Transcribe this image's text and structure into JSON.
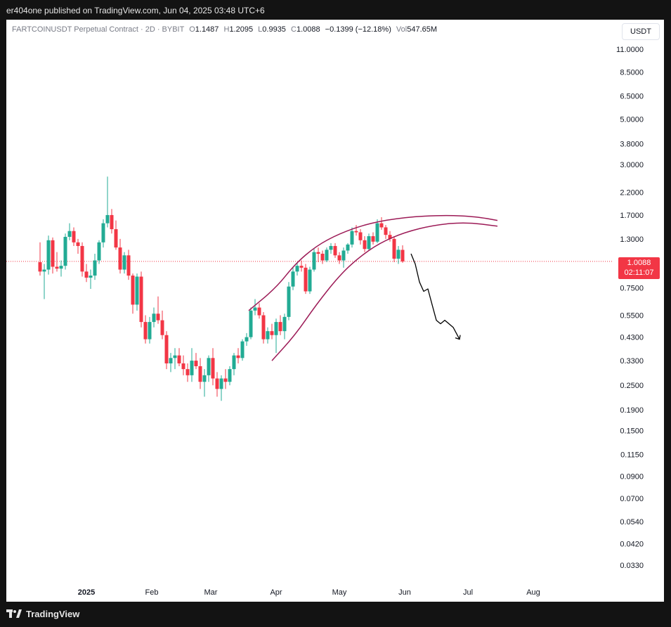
{
  "header": {
    "published_text": "er404one published on TradingView.com, Jun 04, 2025 03:48 UTC+6"
  },
  "legend": {
    "symbol": "FARTCOINUSDT Perpetual Contract · 2D · BYBIT",
    "open_label": "O",
    "open": "1.1487",
    "high_label": "H",
    "high": "1.2095",
    "low_label": "L",
    "low": "0.9935",
    "close_label": "C",
    "close": "1.0088",
    "change": "−0.1399 (−12.18%)",
    "vol_label": "Vol",
    "vol": "547.65",
    "vol_unit": "M"
  },
  "currency": "USDT",
  "last_price": {
    "price": "1.0088",
    "countdown": "02:11:07"
  },
  "colors": {
    "up": "#22ab94",
    "down": "#f23645",
    "channel": "#9c1a56",
    "projection": "#000000"
  },
  "footer": {
    "brand": "TradingView",
    "logo_icon": "tradingview-logo-icon"
  },
  "chart_data": {
    "type": "candlestick",
    "title": "FARTCOINUSDT Perpetual Contract · 2D · BYBIT",
    "y_scale": "log",
    "y_ticks": [
      "11.0000",
      "8.5000",
      "6.5000",
      "5.0000",
      "3.8000",
      "3.0000",
      "2.2000",
      "1.7000",
      "1.3000",
      "0.7500",
      "0.5500",
      "0.4300",
      "0.3300",
      "0.2500",
      "0.1900",
      "0.1500",
      "0.1150",
      "0.0900",
      "0.0700",
      "0.0540",
      "0.0420",
      "0.0330"
    ],
    "x_ticks": [
      "2025",
      "Feb",
      "Mar",
      "Apr",
      "May",
      "Jun",
      "Jul",
      "Aug"
    ],
    "x_range": [
      "2024-12-10",
      "2025-08-31"
    ],
    "candles": [
      {
        "date": "2024-12-10",
        "o": 1.0,
        "h": 1.25,
        "l": 0.86,
        "c": 0.9
      },
      {
        "date": "2024-12-12",
        "o": 0.9,
        "h": 0.98,
        "l": 0.66,
        "c": 0.92
      },
      {
        "date": "2024-12-14",
        "o": 0.92,
        "h": 1.35,
        "l": 0.87,
        "c": 1.28
      },
      {
        "date": "2024-12-16",
        "o": 1.28,
        "h": 1.32,
        "l": 0.88,
        "c": 0.95
      },
      {
        "date": "2024-12-18",
        "o": 0.95,
        "h": 1.12,
        "l": 0.9,
        "c": 0.93
      },
      {
        "date": "2024-12-20",
        "o": 0.93,
        "h": 1.02,
        "l": 0.85,
        "c": 0.96
      },
      {
        "date": "2024-12-22",
        "o": 0.96,
        "h": 1.38,
        "l": 0.92,
        "c": 1.33
      },
      {
        "date": "2024-12-24",
        "o": 1.33,
        "h": 1.55,
        "l": 1.28,
        "c": 1.42
      },
      {
        "date": "2024-12-26",
        "o": 1.42,
        "h": 1.48,
        "l": 1.2,
        "c": 1.25
      },
      {
        "date": "2024-12-28",
        "o": 1.25,
        "h": 1.3,
        "l": 1.1,
        "c": 1.2
      },
      {
        "date": "2024-12-30",
        "o": 1.2,
        "h": 1.25,
        "l": 0.85,
        "c": 0.9
      },
      {
        "date": "2025-01-01",
        "o": 0.9,
        "h": 0.98,
        "l": 0.8,
        "c": 0.84
      },
      {
        "date": "2025-01-03",
        "o": 0.84,
        "h": 0.92,
        "l": 0.74,
        "c": 0.86
      },
      {
        "date": "2025-01-05",
        "o": 0.86,
        "h": 1.1,
        "l": 0.82,
        "c": 1.02
      },
      {
        "date": "2025-01-07",
        "o": 1.02,
        "h": 1.28,
        "l": 0.98,
        "c": 1.25
      },
      {
        "date": "2025-01-09",
        "o": 1.25,
        "h": 1.62,
        "l": 1.18,
        "c": 1.55
      },
      {
        "date": "2025-01-11",
        "o": 1.55,
        "h": 2.62,
        "l": 1.48,
        "c": 1.7
      },
      {
        "date": "2025-01-13",
        "o": 1.7,
        "h": 1.82,
        "l": 1.38,
        "c": 1.45
      },
      {
        "date": "2025-01-15",
        "o": 1.45,
        "h": 1.6,
        "l": 1.15,
        "c": 1.18
      },
      {
        "date": "2025-01-17",
        "o": 1.18,
        "h": 1.3,
        "l": 0.88,
        "c": 0.92
      },
      {
        "date": "2025-01-19",
        "o": 0.92,
        "h": 1.12,
        "l": 0.88,
        "c": 1.08
      },
      {
        "date": "2025-01-21",
        "o": 1.08,
        "h": 1.15,
        "l": 0.82,
        "c": 0.86
      },
      {
        "date": "2025-01-23",
        "o": 0.86,
        "h": 0.88,
        "l": 0.56,
        "c": 0.62
      },
      {
        "date": "2025-01-25",
        "o": 0.62,
        "h": 0.88,
        "l": 0.58,
        "c": 0.85
      },
      {
        "date": "2025-01-27",
        "o": 0.85,
        "h": 0.9,
        "l": 0.48,
        "c": 0.51
      },
      {
        "date": "2025-01-29",
        "o": 0.51,
        "h": 0.55,
        "l": 0.4,
        "c": 0.42
      },
      {
        "date": "2025-01-31",
        "o": 0.42,
        "h": 0.54,
        "l": 0.4,
        "c": 0.51
      },
      {
        "date": "2025-02-02",
        "o": 0.51,
        "h": 0.6,
        "l": 0.48,
        "c": 0.56
      },
      {
        "date": "2025-02-04",
        "o": 0.56,
        "h": 0.68,
        "l": 0.5,
        "c": 0.52
      },
      {
        "date": "2025-02-06",
        "o": 0.52,
        "h": 0.58,
        "l": 0.42,
        "c": 0.44
      },
      {
        "date": "2025-02-08",
        "o": 0.44,
        "h": 0.46,
        "l": 0.3,
        "c": 0.32
      },
      {
        "date": "2025-02-10",
        "o": 0.32,
        "h": 0.36,
        "l": 0.29,
        "c": 0.34
      },
      {
        "date": "2025-02-12",
        "o": 0.34,
        "h": 0.38,
        "l": 0.3,
        "c": 0.35
      },
      {
        "date": "2025-02-14",
        "o": 0.35,
        "h": 0.38,
        "l": 0.31,
        "c": 0.32
      },
      {
        "date": "2025-02-16",
        "o": 0.32,
        "h": 0.35,
        "l": 0.28,
        "c": 0.3
      },
      {
        "date": "2025-02-18",
        "o": 0.3,
        "h": 0.32,
        "l": 0.26,
        "c": 0.28
      },
      {
        "date": "2025-02-20",
        "o": 0.28,
        "h": 0.38,
        "l": 0.26,
        "c": 0.33
      },
      {
        "date": "2025-02-22",
        "o": 0.33,
        "h": 0.36,
        "l": 0.3,
        "c": 0.31
      },
      {
        "date": "2025-02-24",
        "o": 0.31,
        "h": 0.34,
        "l": 0.24,
        "c": 0.26
      },
      {
        "date": "2025-02-26",
        "o": 0.26,
        "h": 0.3,
        "l": 0.22,
        "c": 0.28
      },
      {
        "date": "2025-02-28",
        "o": 0.28,
        "h": 0.35,
        "l": 0.26,
        "c": 0.34
      },
      {
        "date": "2025-03-02",
        "o": 0.34,
        "h": 0.38,
        "l": 0.25,
        "c": 0.27
      },
      {
        "date": "2025-03-04",
        "o": 0.27,
        "h": 0.29,
        "l": 0.22,
        "c": 0.24
      },
      {
        "date": "2025-03-06",
        "o": 0.24,
        "h": 0.28,
        "l": 0.21,
        "c": 0.27
      },
      {
        "date": "2025-03-08",
        "o": 0.27,
        "h": 0.3,
        "l": 0.24,
        "c": 0.26
      },
      {
        "date": "2025-03-10",
        "o": 0.26,
        "h": 0.31,
        "l": 0.25,
        "c": 0.3
      },
      {
        "date": "2025-03-12",
        "o": 0.3,
        "h": 0.36,
        "l": 0.28,
        "c": 0.35
      },
      {
        "date": "2025-03-14",
        "o": 0.35,
        "h": 0.38,
        "l": 0.32,
        "c": 0.34
      },
      {
        "date": "2025-03-16",
        "o": 0.34,
        "h": 0.42,
        "l": 0.33,
        "c": 0.41
      },
      {
        "date": "2025-03-18",
        "o": 0.41,
        "h": 0.45,
        "l": 0.39,
        "c": 0.43
      },
      {
        "date": "2025-03-20",
        "o": 0.43,
        "h": 0.6,
        "l": 0.42,
        "c": 0.58
      },
      {
        "date": "2025-03-22",
        "o": 0.58,
        "h": 0.66,
        "l": 0.55,
        "c": 0.6
      },
      {
        "date": "2025-03-24",
        "o": 0.6,
        "h": 0.63,
        "l": 0.53,
        "c": 0.55
      },
      {
        "date": "2025-03-26",
        "o": 0.55,
        "h": 0.57,
        "l": 0.4,
        "c": 0.42
      },
      {
        "date": "2025-03-28",
        "o": 0.42,
        "h": 0.48,
        "l": 0.4,
        "c": 0.46
      },
      {
        "date": "2025-03-30",
        "o": 0.46,
        "h": 0.5,
        "l": 0.42,
        "c": 0.44
      },
      {
        "date": "2025-04-01",
        "o": 0.44,
        "h": 0.53,
        "l": 0.36,
        "c": 0.51
      },
      {
        "date": "2025-04-03",
        "o": 0.51,
        "h": 0.55,
        "l": 0.44,
        "c": 0.46
      },
      {
        "date": "2025-04-05",
        "o": 0.46,
        "h": 0.56,
        "l": 0.42,
        "c": 0.54
      },
      {
        "date": "2025-04-07",
        "o": 0.54,
        "h": 0.8,
        "l": 0.52,
        "c": 0.76
      },
      {
        "date": "2025-04-09",
        "o": 0.76,
        "h": 0.95,
        "l": 0.73,
        "c": 0.9
      },
      {
        "date": "2025-04-11",
        "o": 0.9,
        "h": 1.0,
        "l": 0.86,
        "c": 0.96
      },
      {
        "date": "2025-04-13",
        "o": 0.96,
        "h": 1.02,
        "l": 0.9,
        "c": 0.94
      },
      {
        "date": "2025-04-15",
        "o": 0.94,
        "h": 0.98,
        "l": 0.7,
        "c": 0.72
      },
      {
        "date": "2025-04-17",
        "o": 0.72,
        "h": 0.95,
        "l": 0.7,
        "c": 0.92
      },
      {
        "date": "2025-04-19",
        "o": 0.92,
        "h": 1.16,
        "l": 0.9,
        "c": 1.12
      },
      {
        "date": "2025-04-21",
        "o": 1.12,
        "h": 1.18,
        "l": 1.0,
        "c": 1.1
      },
      {
        "date": "2025-04-23",
        "o": 1.1,
        "h": 1.14,
        "l": 0.98,
        "c": 1.02
      },
      {
        "date": "2025-04-25",
        "o": 1.02,
        "h": 1.18,
        "l": 1.0,
        "c": 1.15
      },
      {
        "date": "2025-04-27",
        "o": 1.15,
        "h": 1.24,
        "l": 1.1,
        "c": 1.2
      },
      {
        "date": "2025-04-29",
        "o": 1.2,
        "h": 1.24,
        "l": 1.05,
        "c": 1.08
      },
      {
        "date": "2025-05-01",
        "o": 1.08,
        "h": 1.12,
        "l": 0.98,
        "c": 1.02
      },
      {
        "date": "2025-05-03",
        "o": 1.02,
        "h": 1.18,
        "l": 0.94,
        "c": 1.14
      },
      {
        "date": "2025-05-05",
        "o": 1.14,
        "h": 1.24,
        "l": 1.1,
        "c": 1.22
      },
      {
        "date": "2025-05-07",
        "o": 1.22,
        "h": 1.48,
        "l": 1.18,
        "c": 1.42
      },
      {
        "date": "2025-05-09",
        "o": 1.42,
        "h": 1.52,
        "l": 1.35,
        "c": 1.4
      },
      {
        "date": "2025-05-11",
        "o": 1.4,
        "h": 1.45,
        "l": 1.22,
        "c": 1.28
      },
      {
        "date": "2025-05-13",
        "o": 1.28,
        "h": 1.34,
        "l": 1.12,
        "c": 1.16
      },
      {
        "date": "2025-05-15",
        "o": 1.16,
        "h": 1.38,
        "l": 1.14,
        "c": 1.34
      },
      {
        "date": "2025-05-17",
        "o": 1.34,
        "h": 1.4,
        "l": 1.22,
        "c": 1.26
      },
      {
        "date": "2025-05-19",
        "o": 1.26,
        "h": 1.62,
        "l": 1.24,
        "c": 1.55
      },
      {
        "date": "2025-05-21",
        "o": 1.55,
        "h": 1.66,
        "l": 1.44,
        "c": 1.48
      },
      {
        "date": "2025-05-23",
        "o": 1.48,
        "h": 1.52,
        "l": 1.3,
        "c": 1.36
      },
      {
        "date": "2025-05-25",
        "o": 1.36,
        "h": 1.42,
        "l": 1.26,
        "c": 1.3
      },
      {
        "date": "2025-05-27",
        "o": 1.3,
        "h": 1.34,
        "l": 1.0,
        "c": 1.04
      },
      {
        "date": "2025-05-29",
        "o": 1.04,
        "h": 1.2,
        "l": 0.98,
        "c": 1.15
      },
      {
        "date": "2025-05-31",
        "o": 1.1487,
        "h": 1.2095,
        "l": 0.9935,
        "c": 1.0088
      }
    ],
    "annotations": {
      "upper_channel": [
        [
          "2025-03-19",
          0.58
        ],
        [
          "2025-04-01",
          0.75
        ],
        [
          "2025-04-10",
          0.98
        ],
        [
          "2025-04-20",
          1.2
        ],
        [
          "2025-05-01",
          1.38
        ],
        [
          "2025-05-15",
          1.55
        ],
        [
          "2025-06-01",
          1.66
        ],
        [
          "2025-06-20",
          1.7
        ],
        [
          "2025-07-05",
          1.67
        ],
        [
          "2025-07-15",
          1.6
        ]
      ],
      "lower_channel": [
        [
          "2025-03-30",
          0.33
        ],
        [
          "2025-04-10",
          0.44
        ],
        [
          "2025-04-20",
          0.62
        ],
        [
          "2025-05-01",
          0.86
        ],
        [
          "2025-05-10",
          1.05
        ],
        [
          "2025-05-20",
          1.24
        ],
        [
          "2025-06-01",
          1.4
        ],
        [
          "2025-06-15",
          1.52
        ],
        [
          "2025-06-30",
          1.57
        ],
        [
          "2025-07-15",
          1.5
        ]
      ],
      "projection": [
        [
          "2025-06-04",
          1.1
        ],
        [
          "2025-06-06",
          0.98
        ],
        [
          "2025-06-08",
          0.8
        ],
        [
          "2025-06-10",
          0.72
        ],
        [
          "2025-06-12",
          0.74
        ],
        [
          "2025-06-14",
          0.62
        ],
        [
          "2025-06-16",
          0.52
        ],
        [
          "2025-06-18",
          0.5
        ],
        [
          "2025-06-20",
          0.52
        ],
        [
          "2025-06-24",
          0.48
        ],
        [
          "2025-06-27",
          0.42
        ]
      ]
    },
    "last_price_line": 1.0088,
    "grid": false
  }
}
